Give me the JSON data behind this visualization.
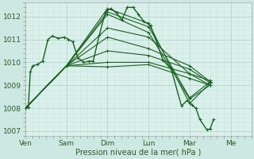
{
  "xlabel": "Pression niveau de la mer( hPa )",
  "bg_color": "#cde8e2",
  "plot_bg_color": "#daf0eb",
  "grid_major_color": "#b8d8d2",
  "grid_minor_color": "#cce3de",
  "line_color": "#1a6020",
  "xlim": [
    0,
    5.5
  ],
  "ylim": [
    1006.8,
    1012.6
  ],
  "yticks": [
    1007,
    1008,
    1009,
    1010,
    1011,
    1012
  ],
  "xtick_labels": [
    "Ven",
    "Sam",
    "Dim",
    "Lun",
    "Mar",
    "Me"
  ],
  "xtick_positions": [
    0.0,
    1.0,
    2.0,
    3.0,
    4.0,
    5.0
  ],
  "series": [
    [
      0.0,
      1008.0,
      0.07,
      1008.05,
      0.12,
      1009.6,
      0.18,
      1009.85,
      0.28,
      1009.9,
      0.42,
      1010.05,
      0.55,
      1011.0,
      0.65,
      1011.15,
      0.8,
      1011.05,
      0.95,
      1011.1,
      1.05,
      1011.0,
      1.15,
      1010.9,
      1.28,
      1010.2,
      1.42,
      1010.0,
      1.55,
      1010.05,
      1.65,
      1010.05,
      1.8,
      1011.2,
      1.95,
      1012.2,
      2.08,
      1012.35,
      2.22,
      1012.15,
      2.35,
      1011.85,
      2.48,
      1012.4,
      2.62,
      1012.4,
      2.75,
      1012.1,
      2.88,
      1011.8,
      3.05,
      1011.6,
      3.35,
      1010.1,
      3.55,
      1009.7,
      3.8,
      1008.1,
      3.95,
      1008.35,
      4.05,
      1008.15,
      4.15,
      1008.0,
      4.25,
      1007.5,
      4.42,
      1007.05,
      4.5,
      1007.1,
      4.58,
      1007.5
    ],
    [
      0.0,
      1008.0,
      1.0,
      1009.85,
      2.0,
      1012.35,
      3.0,
      1011.7,
      4.0,
      1008.2,
      4.5,
      1009.1
    ],
    [
      0.0,
      1008.0,
      1.0,
      1009.85,
      2.0,
      1012.2,
      3.0,
      1011.55,
      4.0,
      1008.45,
      4.5,
      1009.15
    ],
    [
      0.0,
      1008.0,
      1.0,
      1009.85,
      2.0,
      1012.1,
      3.0,
      1011.3,
      4.0,
      1008.4,
      4.5,
      1009.0
    ],
    [
      0.0,
      1008.0,
      1.0,
      1009.85,
      2.0,
      1011.5,
      3.0,
      1011.1,
      4.0,
      1009.5,
      4.5,
      1009.2
    ],
    [
      0.0,
      1008.0,
      1.0,
      1009.85,
      2.0,
      1011.1,
      3.0,
      1010.6,
      4.0,
      1009.85,
      4.5,
      1009.15
    ],
    [
      0.0,
      1008.0,
      1.0,
      1009.85,
      2.0,
      1010.5,
      3.0,
      1010.3,
      4.0,
      1009.7,
      4.5,
      1009.1
    ],
    [
      0.0,
      1008.0,
      1.0,
      1009.85,
      2.0,
      1010.0,
      3.0,
      1010.0,
      4.0,
      1009.5,
      4.5,
      1009.0
    ],
    [
      0.0,
      1008.0,
      1.0,
      1009.85,
      2.0,
      1009.8,
      3.0,
      1009.9,
      4.0,
      1009.3,
      4.5,
      1009.0
    ]
  ]
}
